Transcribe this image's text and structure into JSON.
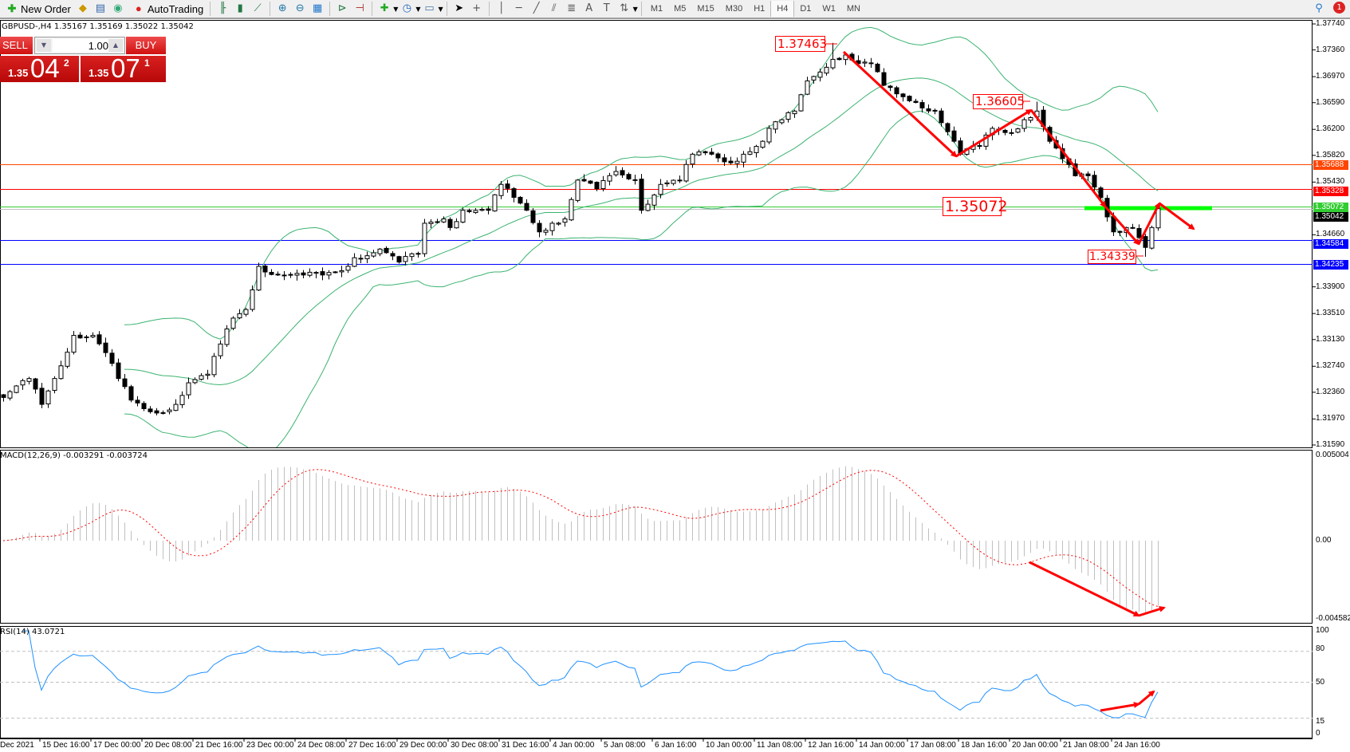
{
  "toolbar": {
    "new_order": "New Order",
    "autotrading": "AutoTrading",
    "timeframes": [
      "M1",
      "M5",
      "M15",
      "M30",
      "H1",
      "H4",
      "D1",
      "W1",
      "MN"
    ],
    "active_timeframe": "H4",
    "notification_count": "1",
    "icons": [
      "new-order-icon",
      "metaeditor-icon",
      "navigator-icon",
      "signals-icon",
      "autotrading-icon",
      "bar-chart-icon",
      "candlestick-icon",
      "line-chart-icon",
      "zoom-in-icon",
      "zoom-out-icon",
      "tile-windows-icon",
      "chart-shift-icon",
      "autoscroll-icon",
      "indicators-icon",
      "periods-icon",
      "templates-icon",
      "cursor-icon",
      "crosshair-icon",
      "vertical-line-icon",
      "horizontal-line-icon",
      "trendline-icon",
      "equidistant-channel-icon",
      "fibonacci-icon",
      "text-icon",
      "text-label-icon",
      "arrows-icon",
      "search-icon",
      "chat-icon"
    ]
  },
  "symbol_info": "GBPUSD-,H4  1.35167 1.35169 1.35022 1.35042",
  "one_click": {
    "sell_label": "SELL",
    "buy_label": "BUY",
    "lot": "1.00",
    "sell_price": {
      "prefix": "1.35",
      "big": "04",
      "sup": "2"
    },
    "buy_price": {
      "prefix": "1.35",
      "big": "07",
      "sup": "1"
    }
  },
  "chart": {
    "price_range": [
      1.3159,
      1.3774
    ],
    "price_ticks": [
      "1.37740",
      "1.37360",
      "1.36970",
      "1.36590",
      "1.36200",
      "1.35820",
      "1.35430",
      "1.34660",
      "1.33900",
      "1.33510",
      "1.33130",
      "1.32740",
      "1.32360",
      "1.31970",
      "1.31590"
    ],
    "close_path": [
      [
        0,
        1.32284
      ],
      [
        4,
        1.32561
      ],
      [
        6,
        1.32183
      ],
      [
        8,
        1.32561
      ],
      [
        11,
        1.33191
      ],
      [
        14,
        1.33191
      ],
      [
        16,
        1.32939
      ],
      [
        18,
        1.32561
      ],
      [
        20,
        1.32246
      ],
      [
        22,
        1.3212
      ],
      [
        24,
        1.32057
      ],
      [
        27,
        1.32183
      ],
      [
        29,
        1.32498
      ],
      [
        32,
        1.32624
      ],
      [
        34,
        1.33065
      ],
      [
        36,
        1.33443
      ],
      [
        38,
        1.33569
      ],
      [
        40,
        1.34199
      ],
      [
        43,
        1.34073
      ],
      [
        47,
        1.34073
      ],
      [
        50,
        1.34073
      ],
      [
        53,
        1.34136
      ],
      [
        55,
        1.34325
      ],
      [
        59,
        1.34451
      ],
      [
        62,
        1.34262
      ],
      [
        65,
        1.34388
      ],
      [
        66,
        1.34829
      ],
      [
        69,
        1.34892
      ],
      [
        70,
        1.34766
      ],
      [
        72,
        1.35018
      ],
      [
        76,
        1.35018
      ],
      [
        78,
        1.35396
      ],
      [
        80,
        1.35207
      ],
      [
        82,
        1.35018
      ],
      [
        84,
        1.34703
      ],
      [
        86,
        1.34829
      ],
      [
        88,
        1.34892
      ],
      [
        90,
        1.35459
      ],
      [
        93,
        1.35333
      ],
      [
        96,
        1.35585
      ],
      [
        99,
        1.35459
      ],
      [
        100,
        1.35018
      ],
      [
        103,
        1.35396
      ],
      [
        106,
        1.35459
      ],
      [
        108,
        1.35837
      ],
      [
        111,
        1.35837
      ],
      [
        114,
        1.35711
      ],
      [
        116,
        1.35837
      ],
      [
        119,
        1.36026
      ],
      [
        120,
        1.36215
      ],
      [
        122,
        1.36341
      ],
      [
        124,
        1.36467
      ],
      [
        126,
        1.36908
      ],
      [
        130,
        1.37223
      ],
      [
        132,
        1.37286
      ],
      [
        134,
        1.3716
      ],
      [
        136,
        1.3716
      ],
      [
        138,
        1.36845
      ],
      [
        140,
        1.36719
      ],
      [
        143,
        1.36593
      ],
      [
        146,
        1.36467
      ],
      [
        149,
        1.36026
      ],
      [
        150,
        1.35837
      ],
      [
        153,
        1.35963
      ],
      [
        155,
        1.36215
      ],
      [
        158,
        1.36152
      ],
      [
        160,
        1.36341
      ],
      [
        162,
        1.36467
      ],
      [
        164,
        1.36026
      ],
      [
        166,
        1.35774
      ],
      [
        168,
        1.35522
      ],
      [
        170,
        1.35522
      ],
      [
        172,
        1.35207
      ],
      [
        174,
        1.34703
      ],
      [
        176,
        1.34766
      ],
      [
        177,
        1.34766
      ],
      [
        179,
        1.34476
      ],
      [
        180,
        1.34766
      ],
      [
        181,
        1.35042
      ]
    ],
    "marked_extremes": [
      {
        "index": 130,
        "price": 1.37463
      },
      {
        "index": 162,
        "price": 1.36605
      },
      {
        "index": 179,
        "price": 1.34339
      }
    ],
    "levels": [
      {
        "price": "1.35688",
        "color": "#ff4500"
      },
      {
        "price": "1.35328",
        "color": "#ff0000"
      },
      {
        "price": "1.35072",
        "color": "#32cd32"
      },
      {
        "price": "1.35042",
        "color": "#000000",
        "line_color": "#c0c0c0"
      },
      {
        "price": "1.34584",
        "color": "#0000ff"
      },
      {
        "price": "1.34235",
        "color": "#0000ff"
      }
    ],
    "annotations": {
      "high1": "1.37463",
      "high2": "1.36605",
      "level": "1.35072",
      "low": "1.34339"
    },
    "band_color": "#3cb371",
    "arrow_color": "#ff0000",
    "zone_color": "#00ff00"
  },
  "macd": {
    "title": "MACD(12,26,9) -0.003291 -0.003724",
    "ticks": [
      "0.005004",
      "0.00",
      "-0.004582"
    ],
    "range": [
      -0.004582,
      0.005004
    ],
    "hist_color": "#c0c0c0",
    "signal_color": "#ff0000"
  },
  "rsi": {
    "title": "RSI(14) 43.0721",
    "ticks": [
      "100",
      "80",
      "50",
      "15",
      "0"
    ],
    "levels": [
      80,
      50,
      15
    ],
    "line_color": "#1e90ff"
  },
  "time_axis": [
    "Dec 2021",
    "15 Dec 16:00",
    "17 Dec 00:00",
    "20 Dec 08:00",
    "21 Dec 16:00",
    "23 Dec 00:00",
    "24 Dec 08:00",
    "27 Dec 16:00",
    "29 Dec 00:00",
    "30 Dec 08:00",
    "31 Dec 16:00",
    "4 Jan 00:00",
    "5 Jan 08:00",
    "6 Jan 16:00",
    "10 Jan 00:00",
    "11 Jan 08:00",
    "12 Jan 16:00",
    "14 Jan 00:00",
    "17 Jan 08:00",
    "18 Jan 16:00",
    "20 Jan 00:00",
    "21 Jan 08:00",
    "24 Jan 16:00"
  ]
}
